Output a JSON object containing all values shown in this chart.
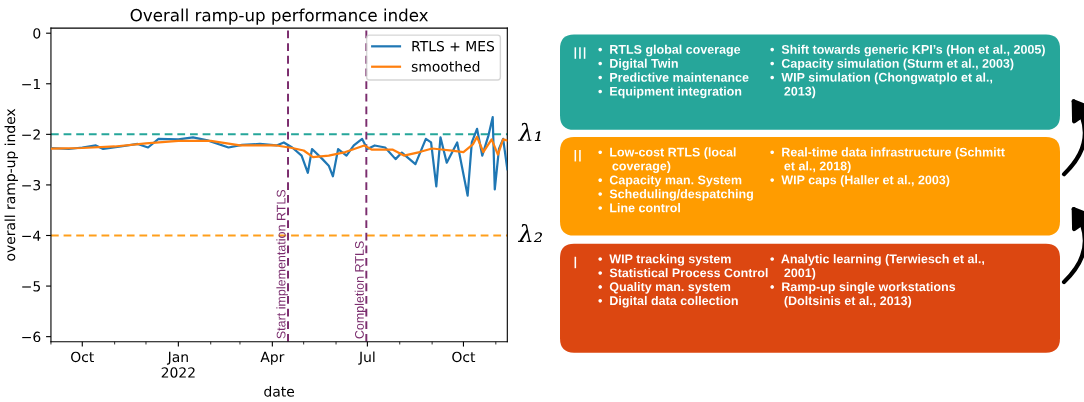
{
  "chart_data": [
    {
      "type": "line",
      "title": "Overall ramp-up performance index",
      "xlabel": "date",
      "ylabel": "overall ramp-up index",
      "xlim": [
        "2021-09-01",
        "2022-11-12"
      ],
      "ylim": [
        -6.1,
        0.1
      ],
      "yticks": [
        {
          "value": 0,
          "label": "0"
        },
        {
          "value": -1,
          "label": "−1"
        },
        {
          "value": -2,
          "label": "−2"
        },
        {
          "value": -3,
          "label": "−3"
        },
        {
          "value": -4,
          "label": "−4"
        },
        {
          "value": -5,
          "label": "−5"
        },
        {
          "value": -6,
          "label": "−6"
        }
      ],
      "xticks": [
        {
          "value": "2021-09-01",
          "label": null
        },
        {
          "value": "2021-10-01",
          "label": "Oct"
        },
        {
          "value": "2021-11-01",
          "label": null
        },
        {
          "value": "2021-12-01",
          "label": null
        },
        {
          "value": "2022-01-01",
          "label": "Jan\n2022"
        },
        {
          "value": "2022-02-01",
          "label": null
        },
        {
          "value": "2022-03-01",
          "label": null
        },
        {
          "value": "2022-04-01",
          "label": "Apr"
        },
        {
          "value": "2022-05-01",
          "label": null
        },
        {
          "value": "2022-06-01",
          "label": null
        },
        {
          "value": "2022-07-01",
          "label": "Jul"
        },
        {
          "value": "2022-08-01",
          "label": null
        },
        {
          "value": "2022-09-01",
          "label": null
        },
        {
          "value": "2022-10-01",
          "label": "Oct"
        },
        {
          "value": "2022-11-01",
          "label": null
        }
      ],
      "grid": false,
      "legend": "top right",
      "marker": "none",
      "line_style": "solid",
      "series": [
        {
          "name": "RTLS + MES",
          "color": "#1f77b4",
          "x": [
            "2021-09-01",
            "2021-09-18",
            "2021-10-01",
            "2021-10-14",
            "2021-10-21",
            "2021-11-07",
            "2021-11-23",
            "2021-12-03",
            "2021-12-13",
            "2022-01-01",
            "2022-01-15",
            "2022-01-29",
            "2022-02-18",
            "2022-03-03",
            "2022-03-20",
            "2022-04-05",
            "2022-04-12",
            "2022-04-20",
            "2022-04-29",
            "2022-05-05",
            "2022-05-09",
            "2022-05-19",
            "2022-05-25",
            "2022-05-29",
            "2022-06-03",
            "2022-06-11",
            "2022-06-18",
            "2022-06-26",
            "2022-07-01",
            "2022-07-08",
            "2022-07-18",
            "2022-07-28",
            "2022-08-03",
            "2022-08-16",
            "2022-08-26",
            "2022-08-31",
            "2022-09-05",
            "2022-09-09",
            "2022-09-15",
            "2022-09-25",
            "2022-10-05",
            "2022-10-09",
            "2022-10-14",
            "2022-10-19",
            "2022-10-25",
            "2022-10-29",
            "2022-10-31",
            "2022-11-04",
            "2022-11-08",
            "2022-11-12"
          ],
          "values": [
            -2.27,
            -2.29,
            -2.26,
            -2.22,
            -2.29,
            -2.24,
            -2.19,
            -2.26,
            -2.09,
            -2.1,
            -2.06,
            -2.12,
            -2.26,
            -2.21,
            -2.19,
            -2.22,
            -2.16,
            -2.26,
            -2.42,
            -2.76,
            -2.29,
            -2.49,
            -2.62,
            -2.83,
            -2.29,
            -2.42,
            -2.22,
            -2.09,
            -2.29,
            -2.22,
            -2.26,
            -2.49,
            -2.36,
            -2.59,
            -2.09,
            -2.16,
            -3.03,
            -2.06,
            -2.56,
            -2.16,
            -3.21,
            -2.16,
            -1.89,
            -2.42,
            -2.02,
            -1.66,
            -3.09,
            -2.29,
            -2.09,
            -2.69
          ]
        },
        {
          "name": "smoothed",
          "color": "#ff7f0e",
          "x": [
            "2021-09-01",
            "2021-10-01",
            "2021-11-01",
            "2021-12-01",
            "2022-01-01",
            "2022-02-01",
            "2022-03-01",
            "2022-04-05",
            "2022-04-20",
            "2022-05-01",
            "2022-05-10",
            "2022-05-25",
            "2022-06-10",
            "2022-06-28",
            "2022-07-05",
            "2022-07-25",
            "2022-08-05",
            "2022-08-20",
            "2022-09-01",
            "2022-09-10",
            "2022-09-20",
            "2022-10-01",
            "2022-10-10",
            "2022-10-14",
            "2022-10-20",
            "2022-10-28",
            "2022-11-03",
            "2022-11-08",
            "2022-11-12"
          ],
          "values": [
            -2.28,
            -2.27,
            -2.24,
            -2.18,
            -2.13,
            -2.13,
            -2.22,
            -2.22,
            -2.27,
            -2.32,
            -2.45,
            -2.42,
            -2.35,
            -2.22,
            -2.3,
            -2.3,
            -2.42,
            -2.35,
            -2.28,
            -2.3,
            -2.32,
            -2.35,
            -2.2,
            -2.05,
            -2.35,
            -2.1,
            -2.4,
            -2.1,
            -2.12
          ]
        }
      ],
      "ref_lines": [
        {
          "axis": "y",
          "value": -2,
          "label": "λ₁",
          "color": "#26a69a",
          "line_style": "dashed"
        },
        {
          "axis": "y",
          "value": -4,
          "label": "λ₂",
          "color": "#ff9f1c",
          "line_style": "dashed"
        },
        {
          "axis": "x",
          "value": "2022-04-16",
          "label": "Start implementation RTLS",
          "color": "#7b2d6e",
          "line_style": "dashed"
        },
        {
          "axis": "x",
          "value": "2022-06-30",
          "label": "Completion RTLS",
          "color": "#7b2d6e",
          "line_style": "dashed"
        }
      ]
    },
    {
      "type": "other",
      "categories": [
        "III",
        "II",
        "I"
      ],
      "colors": [
        "#26a69a",
        "#ff9c00",
        "#dc4711"
      ],
      "annotations": [
        "•  RTLS global coverage\n•  Digital Twin\n•  Predictive maintenance\n•  Equipment integration",
        "•  Shift towards generic KPI’s (Hon et al., 2005)\n•  Capacity simulation (Sturm et al., 2003)\n•  WIP simulation (Chongwatplo et al.,\n    2013)",
        "•  Low-cost RTLS (local\n    coverage)\n•  Capacity man. System\n•  Scheduling/despatching\n•  Line control",
        "•  Real-time data infrastructure (Schmitt\n    et al., 2018)\n•  WIP caps (Haller et al., 2003)",
        "•  WIP tracking system\n•  Statistical Process Control\n•  Quality man. system\n•  Digital data collection",
        "•  Analytic learning (Terwiesch et al.,\n    2001)\n•  Ramp-up single workstations\n    (Doltsinis et al., 2013)"
      ]
    }
  ]
}
